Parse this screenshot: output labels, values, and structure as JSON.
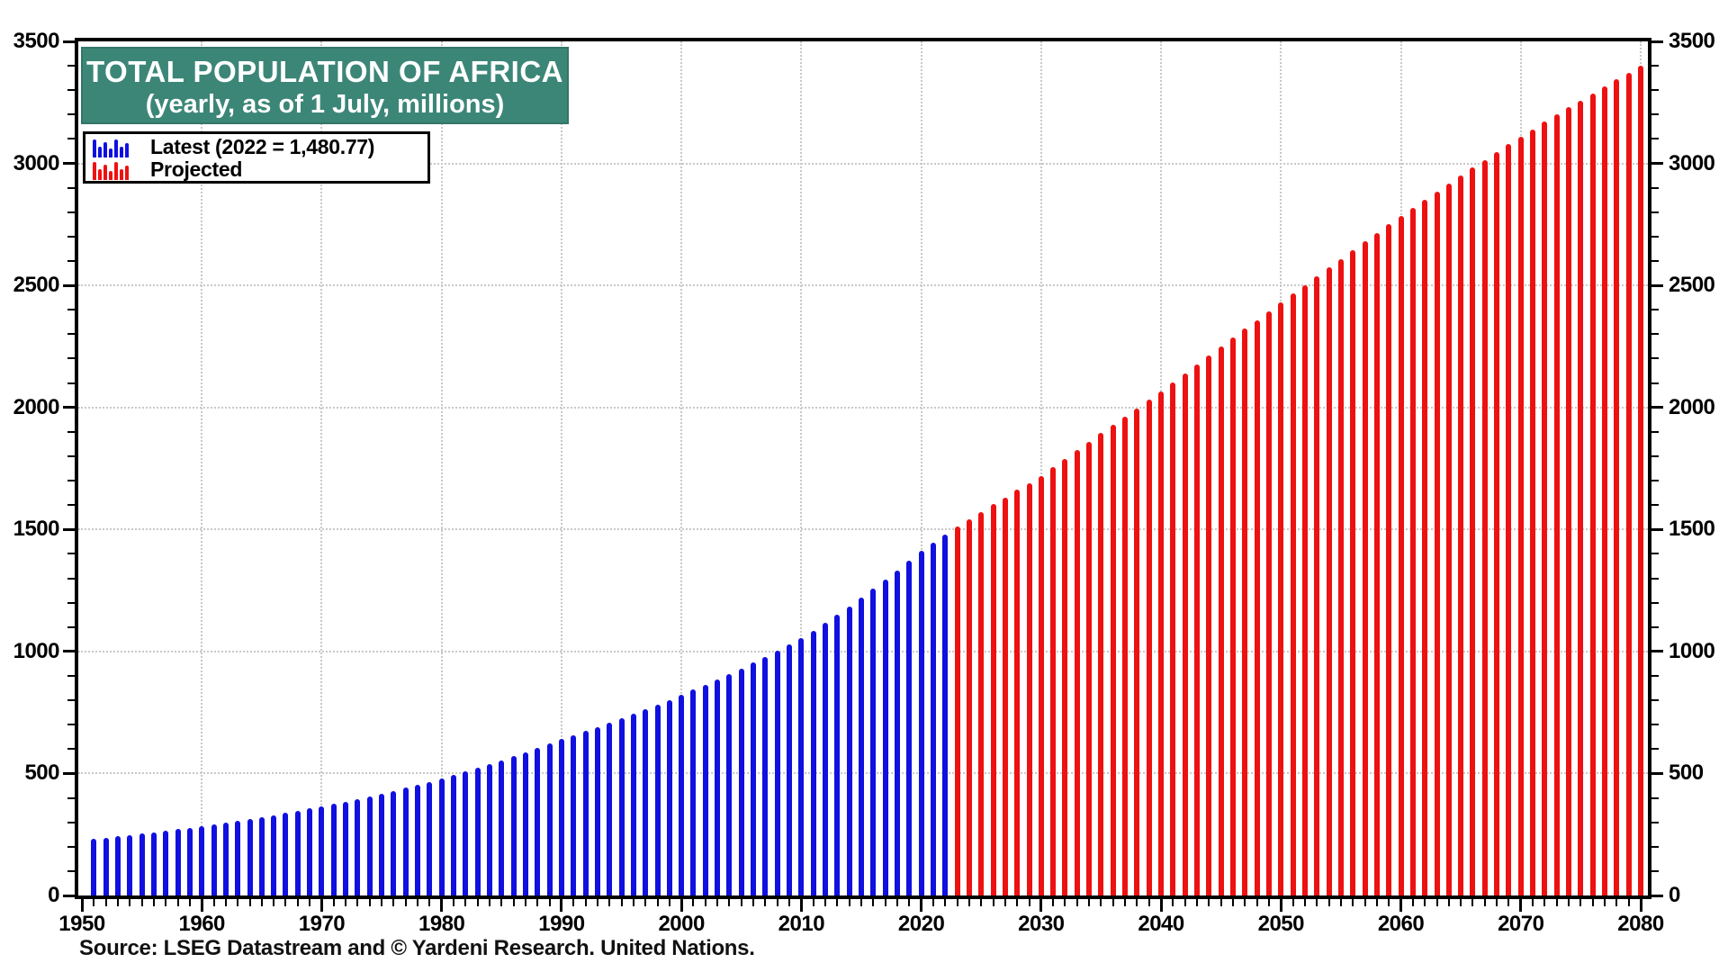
{
  "header": {
    "title": "TOTAL POPULATION OF AFRICA",
    "subtitle": "(yearly, as of 1 July, millions)"
  },
  "legend": {
    "items": [
      {
        "name": "latest",
        "icon": "blue-bars-icon",
        "label": "Latest (2022 = 1,480.77)",
        "color": "#1010E0"
      },
      {
        "name": "projected",
        "icon": "red-bars-icon",
        "label": "Projected",
        "color": "#EE1111"
      }
    ]
  },
  "source": "Source: LSEG Datastream and © Yardeni Research. United Nations.",
  "colors": {
    "title_box_background": "#3C8678",
    "latest_bars": "#1010E0",
    "projected_bars": "#EE1111",
    "gridline": "#c8c8c8",
    "axis": "#000000",
    "background": "#ffffff"
  },
  "chart_data": {
    "type": "bar",
    "title": "TOTAL POPULATION OF AFRICA",
    "subtitle": "(yearly, as of 1 July, millions)",
    "unit": "millions of people",
    "grid": "dotted, at decade verticals and 500-unit horizontals",
    "legend_position": "top-left inside plot",
    "x_axis": {
      "min": 1950,
      "max": 2080,
      "major_step": 10,
      "minor_step": 1,
      "tick_labels": [
        "1950",
        "1960",
        "1970",
        "1980",
        "1990",
        "2000",
        "2010",
        "2020",
        "2030",
        "2040",
        "2050",
        "2060",
        "2070",
        "2080"
      ]
    },
    "y_axis": {
      "min": 0,
      "max": 3500,
      "major_step": 500,
      "minor_step": 100,
      "labels_both_sides": true,
      "tick_labels": [
        "0",
        "500",
        "1000",
        "1500",
        "2000",
        "2500",
        "3000",
        "3500"
      ]
    },
    "series": [
      {
        "name": "Latest (2022 = 1,480.77)",
        "color": "#1010E0",
        "start_year": 1951,
        "values": [
          232,
          237,
          242,
          248,
          253,
          259,
          266,
          272,
          278,
          285,
          292,
          299,
          306,
          314,
          322,
          330,
          338,
          347,
          356,
          365,
          375,
          385,
          395,
          406,
          417,
          429,
          441,
          453,
          466,
          479,
          493,
          508,
          523,
          538,
          554,
          570,
          587,
          604,
          622,
          640,
          657,
          674,
          691,
          709,
          727,
          745,
          764,
          783,
          802,
          822,
          843,
          864,
          886,
          908,
          931,
          955,
          979,
          1004,
          1029,
          1055,
          1086,
          1118,
          1151,
          1185,
          1220,
          1256,
          1293,
          1331,
          1371,
          1412,
          1446,
          1480.77
        ]
      },
      {
        "name": "Projected",
        "color": "#EE1111",
        "start_year": 2023,
        "values": [
          1512,
          1543,
          1573,
          1603,
          1632,
          1662,
          1691,
          1720,
          1755,
          1790,
          1825,
          1859,
          1894,
          1928,
          1963,
          1997,
          2031,
          2065,
          2102,
          2139,
          2176,
          2212,
          2249,
          2285,
          2322,
          2358,
          2394,
          2430,
          2466,
          2502,
          2538,
          2573,
          2609,
          2644,
          2680,
          2715,
          2750,
          2785,
          2818,
          2851,
          2884,
          2917,
          2949,
          2982,
          3014,
          3046,
          3078,
          3110,
          3140,
          3170,
          3200,
          3229,
          3258,
          3287,
          3315,
          3344,
          3372,
          3400
        ]
      }
    ]
  }
}
